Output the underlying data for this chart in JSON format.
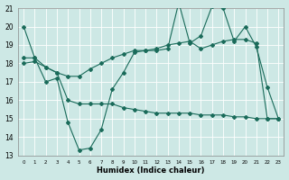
{
  "xlabel": "Humidex (Indice chaleur)",
  "bg_color": "#cde8e5",
  "grid_color": "#b0d4d0",
  "line_color": "#1a6b5a",
  "line1_x": [
    0,
    1,
    2,
    3,
    4,
    5,
    6,
    7,
    8,
    9,
    10,
    11,
    12,
    13,
    14,
    15,
    16,
    17,
    18,
    19,
    20,
    21,
    22,
    23
  ],
  "line1_y": [
    20.0,
    18.3,
    17.0,
    17.2,
    14.8,
    13.3,
    13.4,
    14.4,
    16.6,
    17.5,
    18.6,
    18.7,
    18.7,
    18.8,
    21.3,
    19.1,
    19.5,
    21.1,
    21.0,
    19.2,
    20.0,
    18.9,
    16.7,
    15.0
  ],
  "line2_x": [
    0,
    1,
    2,
    3,
    4,
    5,
    6,
    7,
    8,
    9,
    10,
    11,
    12,
    13,
    14,
    15,
    16,
    17,
    18,
    19,
    20,
    21,
    22,
    23
  ],
  "line2_y": [
    18.3,
    18.3,
    17.8,
    17.5,
    17.3,
    17.3,
    17.7,
    18.0,
    18.3,
    18.5,
    18.7,
    18.7,
    18.8,
    19.0,
    19.1,
    19.2,
    18.8,
    19.0,
    19.2,
    19.3,
    19.3,
    19.1,
    15.0,
    15.0
  ],
  "line3_x": [
    0,
    1,
    2,
    3,
    4,
    5,
    6,
    7,
    8,
    9,
    10,
    11,
    12,
    13,
    14,
    15,
    16,
    17,
    18,
    19,
    20,
    21,
    22,
    23
  ],
  "line3_y": [
    18.0,
    18.1,
    17.8,
    17.5,
    16.0,
    15.8,
    15.8,
    15.8,
    15.8,
    15.6,
    15.5,
    15.4,
    15.3,
    15.3,
    15.3,
    15.3,
    15.2,
    15.2,
    15.2,
    15.1,
    15.1,
    15.0,
    15.0,
    15.0
  ],
  "ylim": [
    13,
    21
  ],
  "xlim": [
    -0.5,
    23.5
  ],
  "yticks": [
    13,
    14,
    15,
    16,
    17,
    18,
    19,
    20,
    21
  ],
  "xticks": [
    0,
    1,
    2,
    3,
    4,
    5,
    6,
    7,
    8,
    9,
    10,
    11,
    12,
    13,
    14,
    15,
    16,
    17,
    18,
    19,
    20,
    21,
    22,
    23
  ]
}
